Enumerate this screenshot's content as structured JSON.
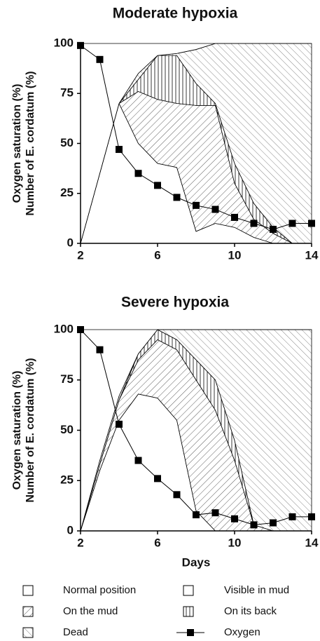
{
  "chart_data": [
    {
      "type": "stacked-area",
      "title": "Moderate hypoxia",
      "y_label_lines": [
        "Oxygen saturation (%)",
        "Number of E. cordatum (%)"
      ],
      "x": [
        2,
        3,
        4,
        5,
        6,
        7,
        8,
        9,
        10,
        11,
        12,
        13,
        14
      ],
      "xlim": [
        2,
        14
      ],
      "xticks": [
        2,
        6,
        10,
        14
      ],
      "ylim": [
        0,
        100
      ],
      "yticks": [
        0,
        25,
        50,
        75,
        100
      ],
      "series": [
        {
          "name": "Visible in mud",
          "hatch": "none",
          "color": "#000000",
          "values": [
            0,
            35,
            70,
            50,
            40,
            38,
            6,
            10,
            8,
            3,
            0,
            0,
            0
          ]
        },
        {
          "name": "On the mud",
          "hatch": "slash",
          "color": "#000000",
          "values": [
            0,
            0,
            0,
            26,
            32,
            32,
            63,
            59,
            22,
            9,
            5,
            0,
            0
          ]
        },
        {
          "name": "On its back",
          "hatch": "vertical",
          "color": "#000000",
          "values": [
            0,
            0,
            0,
            6,
            22,
            24,
            11,
            1,
            10,
            8,
            3,
            0,
            0
          ]
        },
        {
          "name": "Dead",
          "hatch": "backslash",
          "color": "#000000",
          "values": [
            0,
            0,
            0,
            3,
            0,
            1,
            17,
            30,
            60,
            80,
            92,
            100,
            100
          ]
        },
        {
          "name": "Normal position",
          "hatch": "none",
          "color": "#000000",
          "values": [
            100,
            65,
            30,
            15,
            6,
            5,
            3,
            0,
            0,
            0,
            0,
            0,
            0
          ]
        },
        {
          "name": "Oxygen",
          "type": "line",
          "marker": "square",
          "color": "#000000",
          "values": [
            99,
            92,
            47,
            35,
            29,
            23,
            19,
            17,
            13,
            10,
            7,
            10,
            10
          ]
        }
      ]
    },
    {
      "type": "stacked-area",
      "title": "Severe hypoxia",
      "y_label_lines": [
        "Oxygen saturation (%)",
        "Number of E. cordatum (%)"
      ],
      "x_label": "Days",
      "x": [
        2,
        3,
        4,
        5,
        6,
        7,
        8,
        9,
        10,
        11,
        12,
        13,
        14
      ],
      "xlim": [
        2,
        14
      ],
      "xticks": [
        2,
        6,
        10,
        14
      ],
      "ylim": [
        0,
        100
      ],
      "yticks": [
        0,
        25,
        50,
        75,
        100
      ],
      "series": [
        {
          "name": "Visible in mud",
          "hatch": "none",
          "color": "#000000",
          "values": [
            0,
            30,
            55,
            68,
            66,
            55,
            10,
            0,
            0,
            0,
            0,
            0,
            0
          ]
        },
        {
          "name": "On the mud",
          "hatch": "slash",
          "color": "#000000",
          "values": [
            0,
            3,
            10,
            17,
            29,
            35,
            65,
            60,
            35,
            3,
            0,
            0,
            0
          ]
        },
        {
          "name": "On its back",
          "hatch": "vertical",
          "color": "#000000",
          "values": [
            0,
            0,
            0,
            3,
            5,
            5,
            10,
            15,
            10,
            0,
            0,
            0,
            0
          ]
        },
        {
          "name": "Dead",
          "hatch": "backslash",
          "color": "#000000",
          "values": [
            0,
            2,
            2,
            0,
            0,
            5,
            15,
            25,
            55,
            97,
            100,
            100,
            100
          ]
        },
        {
          "name": "Normal position",
          "hatch": "none",
          "color": "#000000",
          "values": [
            100,
            65,
            33,
            12,
            0,
            0,
            0,
            0,
            0,
            0,
            0,
            0,
            0
          ]
        },
        {
          "name": "Oxygen",
          "type": "line",
          "marker": "square",
          "color": "#000000",
          "values": [
            100,
            90,
            53,
            35,
            26,
            18,
            8,
            9,
            6,
            3,
            4,
            7,
            7
          ]
        }
      ]
    }
  ]
}
